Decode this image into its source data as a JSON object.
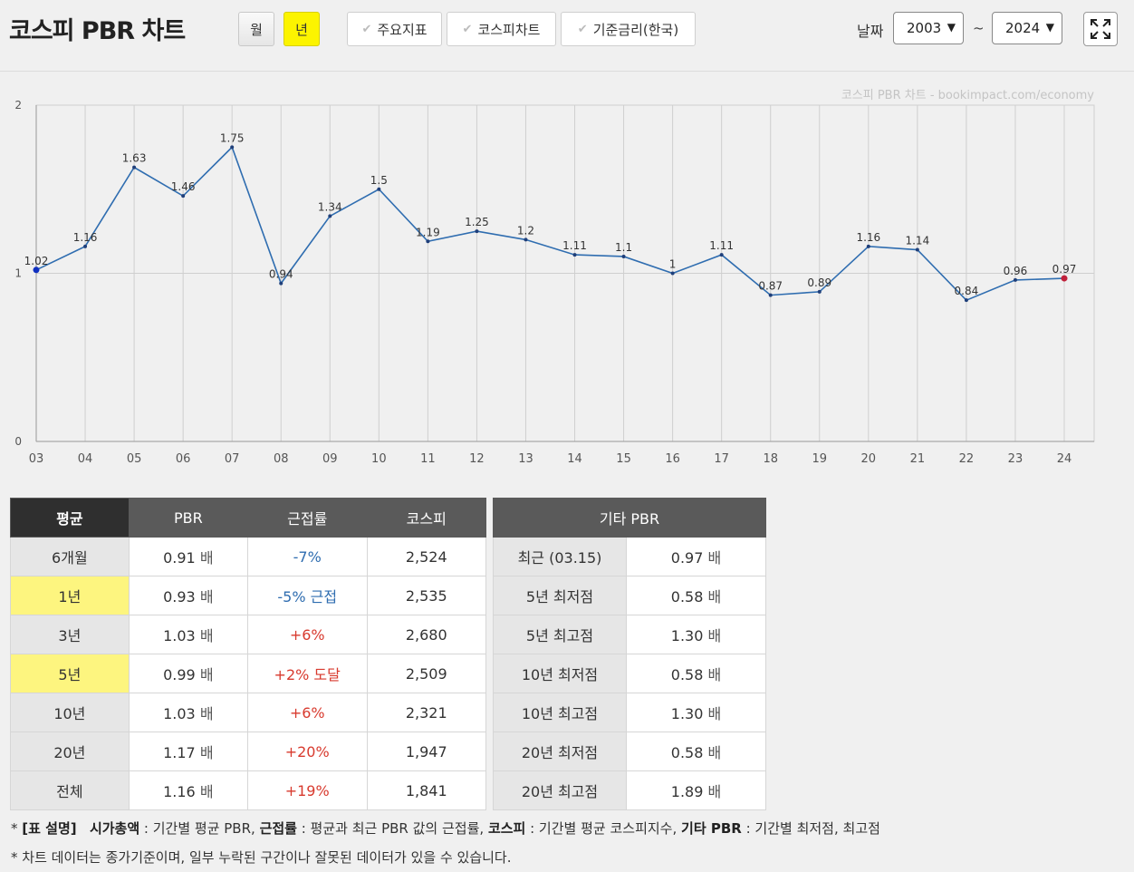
{
  "header": {
    "title": "코스피 PBR 차트",
    "period_month": "월",
    "period_year": "년",
    "toggles": [
      "주요지표",
      "코스피차트",
      "기준금리(한국)"
    ],
    "date_label": "날짜",
    "date_from": "2003",
    "date_to": "2024",
    "tilde": "~"
  },
  "chart_data": {
    "type": "line",
    "watermark": "코스피 PBR 차트 - bookimpact.com/economy",
    "categories": [
      "03",
      "04",
      "05",
      "06",
      "07",
      "08",
      "09",
      "10",
      "11",
      "12",
      "13",
      "14",
      "15",
      "16",
      "17",
      "18",
      "19",
      "20",
      "21",
      "22",
      "23",
      "24"
    ],
    "values": [
      1.02,
      1.16,
      1.63,
      1.46,
      1.75,
      0.94,
      1.34,
      1.5,
      1.19,
      1.25,
      1.2,
      1.11,
      1.1,
      1,
      1.11,
      0.87,
      0.89,
      1.16,
      1.14,
      0.84,
      0.96,
      0.97
    ],
    "ylim": [
      0,
      2
    ],
    "yticks": [
      0,
      1,
      2
    ],
    "grid": true,
    "line_color": "#2f6db0"
  },
  "avg_table": {
    "headers": [
      "평균",
      "PBR",
      "근접률",
      "코스피"
    ],
    "rows": [
      {
        "label": "6개월",
        "pbr": "0.91",
        "prox": "-7%",
        "kospi": "2,524",
        "hl": false,
        "sign": "neg"
      },
      {
        "label": "1년",
        "pbr": "0.93",
        "prox": "-5% 근접",
        "kospi": "2,535",
        "hl": true,
        "sign": "neg"
      },
      {
        "label": "3년",
        "pbr": "1.03",
        "prox": "+6%",
        "kospi": "2,680",
        "hl": false,
        "sign": "pos"
      },
      {
        "label": "5년",
        "pbr": "0.99",
        "prox": "+2% 도달",
        "kospi": "2,509",
        "hl": true,
        "sign": "pos"
      },
      {
        "label": "10년",
        "pbr": "1.03",
        "prox": "+6%",
        "kospi": "2,321",
        "hl": false,
        "sign": "pos"
      },
      {
        "label": "20년",
        "pbr": "1.17",
        "prox": "+20%",
        "kospi": "1,947",
        "hl": false,
        "sign": "pos"
      },
      {
        "label": "전체",
        "pbr": "1.16",
        "prox": "+19%",
        "kospi": "1,841",
        "hl": false,
        "sign": "pos"
      }
    ],
    "unit": "배"
  },
  "other_table": {
    "header": "기타 PBR",
    "rows": [
      {
        "label": "최근 (03.15)",
        "value": "0.97"
      },
      {
        "label": "5년 최저점",
        "value": "0.58"
      },
      {
        "label": "5년 최고점",
        "value": "1.30"
      },
      {
        "label": "10년 최저점",
        "value": "0.58"
      },
      {
        "label": "10년 최고점",
        "value": "1.30"
      },
      {
        "label": "20년 최저점",
        "value": "0.58"
      },
      {
        "label": "20년 최고점",
        "value": "1.89"
      }
    ],
    "unit": "배"
  },
  "notes": {
    "line1_prefix": "* ",
    "line1_head": "[표 설명]",
    "items": [
      {
        "term": "시가총액",
        "desc": " : 기간별 평균 PBR, "
      },
      {
        "term": "근접률",
        "desc": " : 평균과 최근 PBR 값의 근접률, "
      },
      {
        "term": "코스피",
        "desc": " : 기간별 평균 코스피지수, "
      },
      {
        "term": "기타 PBR",
        "desc": " : 기간별 최저점, 최고점"
      }
    ],
    "line2": "* 차트 데이터는 종가기준이며, 일부 누락된 구간이나 잘못된 데이터가 있을 수 있습니다."
  }
}
